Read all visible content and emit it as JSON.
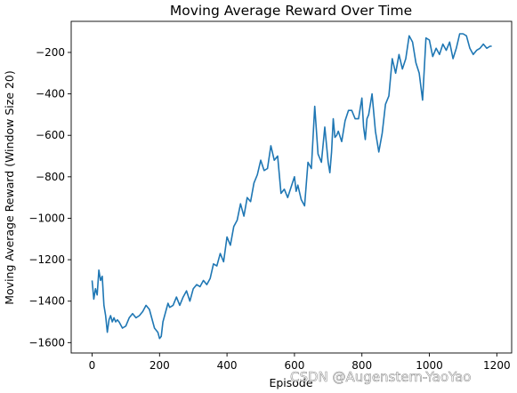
{
  "chart_data": {
    "type": "line",
    "title": "Moving Average Reward Over Time",
    "xlabel": "Episode",
    "ylabel": "Moving Average Reward (Window Size 20)",
    "xlim": [
      -62,
      1244
    ],
    "ylim": [
      -1650,
      -50
    ],
    "xticks": [
      0,
      200,
      400,
      600,
      800,
      1000,
      1200
    ],
    "yticks": [
      -1600,
      -1400,
      -1200,
      -1000,
      -800,
      -600,
      -400,
      -200
    ],
    "grid": false,
    "line_color": "#1f77b4",
    "series": [
      {
        "x": [
          0,
          5,
          10,
          15,
          20,
          25,
          30,
          35,
          40,
          45,
          50,
          55,
          60,
          65,
          70,
          75,
          80,
          90,
          100,
          110,
          120,
          130,
          140,
          150,
          160,
          170,
          175,
          180,
          185,
          190,
          195,
          200,
          205,
          210,
          215,
          220,
          225,
          230,
          240,
          250,
          260,
          270,
          280,
          290,
          300,
          310,
          320,
          330,
          340,
          350,
          360,
          370,
          380,
          390,
          400,
          410,
          420,
          430,
          440,
          450,
          460,
          470,
          480,
          490,
          500,
          510,
          520,
          530,
          540,
          550,
          560,
          570,
          580,
          590,
          600,
          605,
          610,
          620,
          630,
          640,
          650,
          660,
          670,
          680,
          690,
          700,
          705,
          710,
          715,
          720,
          725,
          730,
          740,
          750,
          760,
          770,
          780,
          790,
          800,
          805,
          810,
          815,
          820,
          830,
          840,
          850,
          860,
          870,
          880,
          890,
          900,
          910,
          920,
          930,
          940,
          950,
          960,
          970,
          980,
          990,
          1000,
          1010,
          1020,
          1030,
          1040,
          1050,
          1060,
          1070,
          1080,
          1090,
          1100,
          1110,
          1120,
          1130,
          1140,
          1150,
          1160,
          1170,
          1180,
          1185
        ],
        "y": [
          -1300,
          -1390,
          -1340,
          -1370,
          -1250,
          -1300,
          -1280,
          -1420,
          -1470,
          -1550,
          -1490,
          -1470,
          -1500,
          -1480,
          -1500,
          -1490,
          -1500,
          -1530,
          -1520,
          -1480,
          -1460,
          -1480,
          -1470,
          -1450,
          -1420,
          -1440,
          -1470,
          -1500,
          -1530,
          -1540,
          -1550,
          -1580,
          -1570,
          -1500,
          -1470,
          -1440,
          -1410,
          -1430,
          -1420,
          -1380,
          -1420,
          -1380,
          -1350,
          -1400,
          -1340,
          -1320,
          -1330,
          -1300,
          -1320,
          -1290,
          -1220,
          -1230,
          -1170,
          -1210,
          -1090,
          -1130,
          -1040,
          -1010,
          -930,
          -990,
          -900,
          -920,
          -830,
          -790,
          -720,
          -770,
          -760,
          -650,
          -720,
          -700,
          -880,
          -860,
          -900,
          -850,
          -800,
          -870,
          -840,
          -910,
          -940,
          -730,
          -760,
          -460,
          -690,
          -730,
          -560,
          -730,
          -780,
          -680,
          -520,
          -610,
          -600,
          -580,
          -630,
          -530,
          -480,
          -480,
          -520,
          -520,
          -420,
          -560,
          -620,
          -520,
          -500,
          -400,
          -580,
          -680,
          -590,
          -450,
          -410,
          -230,
          -300,
          -210,
          -280,
          -230,
          -120,
          -150,
          -250,
          -300,
          -430,
          -130,
          -140,
          -220,
          -180,
          -210,
          -160,
          -190,
          -150,
          -230,
          -180,
          -110,
          -110,
          -120,
          -180,
          -210,
          -190,
          -180,
          -160,
          -180,
          -170,
          -170
        ]
      }
    ],
    "watermark": "CSDN @Augenstern-YaoYao"
  }
}
